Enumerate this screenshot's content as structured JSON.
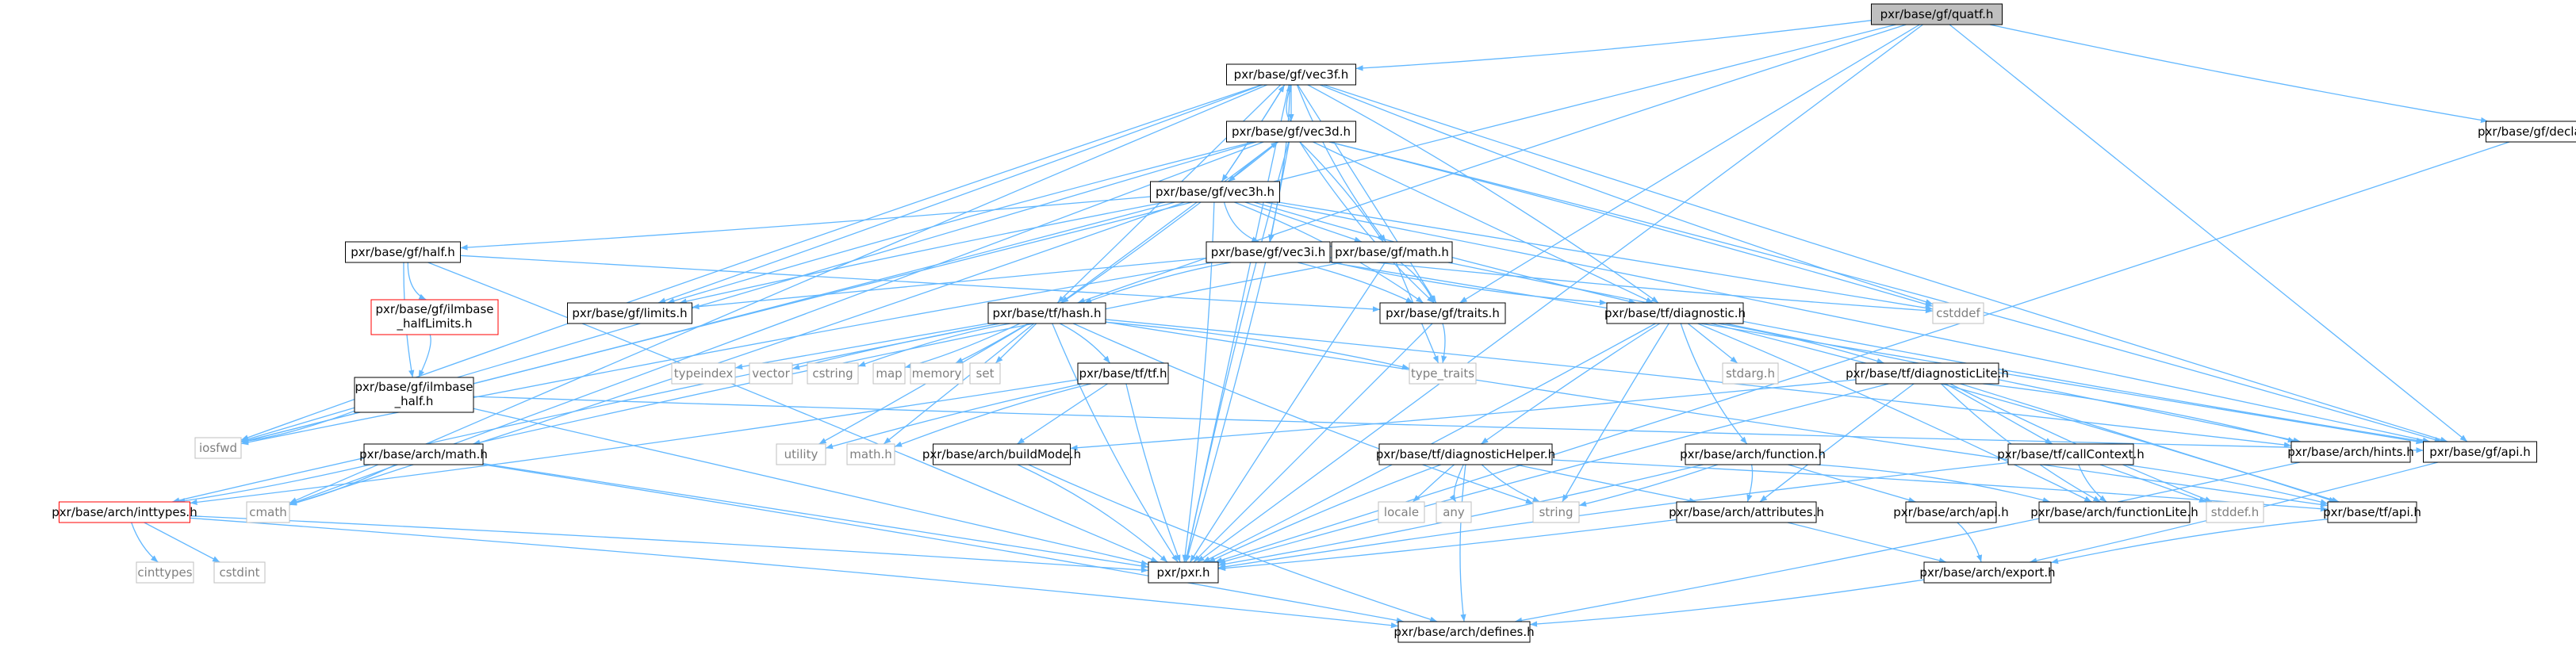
{
  "diagram": {
    "nodes": [
      {
        "id": "quatf",
        "label": "pxr/base/gf/quatf.h",
        "style": "root"
      },
      {
        "id": "vec3f",
        "label": "pxr/base/gf/vec3f.h",
        "style": "normal"
      },
      {
        "id": "vec3d",
        "label": "pxr/base/gf/vec3d.h",
        "style": "normal"
      },
      {
        "id": "vec3h",
        "label": "pxr/base/gf/vec3h.h",
        "style": "normal"
      },
      {
        "id": "half",
        "label": "pxr/base/gf/half.h",
        "style": "normal"
      },
      {
        "id": "ilmlimits",
        "label": [
          "pxr/base/gf/ilmbase",
          "_halfLimits.h"
        ],
        "style": "missing"
      },
      {
        "id": "ilmhalf",
        "label": [
          "pxr/base/gf/ilmbase",
          "_half.h"
        ],
        "style": "normal"
      },
      {
        "id": "limits",
        "label": "pxr/base/gf/limits.h",
        "style": "normal"
      },
      {
        "id": "vec3i",
        "label": "pxr/base/gf/vec3i.h",
        "style": "normal"
      },
      {
        "id": "gfmath",
        "label": "pxr/base/gf/math.h",
        "style": "normal"
      },
      {
        "id": "traits",
        "label": "pxr/base/gf/traits.h",
        "style": "normal"
      },
      {
        "id": "cstddef",
        "label": "cstddef",
        "style": "system"
      },
      {
        "id": "declare",
        "label": "pxr/base/gf/declare.h",
        "style": "normal"
      },
      {
        "id": "gfapi",
        "label": "pxr/base/gf/api.h",
        "style": "normal"
      },
      {
        "id": "hash",
        "label": "pxr/base/tf/hash.h",
        "style": "normal"
      },
      {
        "id": "diagnostic",
        "label": "pxr/base/tf/diagnostic.h",
        "style": "normal"
      },
      {
        "id": "typeindex",
        "label": "typeindex",
        "style": "system"
      },
      {
        "id": "vector",
        "label": "vector",
        "style": "system"
      },
      {
        "id": "cstring",
        "label": "cstring",
        "style": "system"
      },
      {
        "id": "map",
        "label": "map",
        "style": "system"
      },
      {
        "id": "memory",
        "label": "memory",
        "style": "system"
      },
      {
        "id": "set",
        "label": "set",
        "style": "system"
      },
      {
        "id": "tftf",
        "label": "pxr/base/tf/tf.h",
        "style": "normal"
      },
      {
        "id": "type_traits",
        "label": "type_traits",
        "style": "system"
      },
      {
        "id": "stdarg",
        "label": "stdarg.h",
        "style": "system"
      },
      {
        "id": "diaglite",
        "label": "pxr/base/tf/diagnosticLite.h",
        "style": "normal"
      },
      {
        "id": "iosfwd",
        "label": "iosfwd",
        "style": "system"
      },
      {
        "id": "utility",
        "label": "utility",
        "style": "system"
      },
      {
        "id": "mathh",
        "label": "math.h",
        "style": "system"
      },
      {
        "id": "archmath",
        "label": "pxr/base/arch/math.h",
        "style": "normal"
      },
      {
        "id": "buildmode",
        "label": "pxr/base/arch/buildMode.h",
        "style": "normal"
      },
      {
        "id": "diaghelper",
        "label": "pxr/base/tf/diagnosticHelper.h",
        "style": "normal"
      },
      {
        "id": "archfunc",
        "label": "pxr/base/arch/function.h",
        "style": "normal"
      },
      {
        "id": "callctx",
        "label": "pxr/base/tf/callContext.h",
        "style": "normal"
      },
      {
        "id": "hints",
        "label": "pxr/base/arch/hints.h",
        "style": "normal"
      },
      {
        "id": "inttypes",
        "label": "pxr/base/arch/inttypes.h",
        "style": "missing"
      },
      {
        "id": "cmath",
        "label": "cmath",
        "style": "system"
      },
      {
        "id": "locale",
        "label": "locale",
        "style": "system"
      },
      {
        "id": "any",
        "label": "any",
        "style": "system"
      },
      {
        "id": "string",
        "label": "string",
        "style": "system"
      },
      {
        "id": "attributes",
        "label": "pxr/base/arch/attributes.h",
        "style": "normal"
      },
      {
        "id": "archapi",
        "label": "pxr/base/arch/api.h",
        "style": "normal"
      },
      {
        "id": "funclite",
        "label": "pxr/base/arch/functionLite.h",
        "style": "normal"
      },
      {
        "id": "stddef",
        "label": "stddef.h",
        "style": "system"
      },
      {
        "id": "tfapi",
        "label": "pxr/base/tf/api.h",
        "style": "normal"
      },
      {
        "id": "cinttypes",
        "label": "cinttypes",
        "style": "system"
      },
      {
        "id": "cstdint",
        "label": "cstdint",
        "style": "system"
      },
      {
        "id": "pxr",
        "label": "pxr/pxr.h",
        "style": "normal"
      },
      {
        "id": "export",
        "label": "pxr/base/arch/export.h",
        "style": "normal"
      },
      {
        "id": "defines",
        "label": "pxr/base/arch/defines.h",
        "style": "normal"
      }
    ],
    "edges": [
      [
        "quatf",
        "vec3f"
      ],
      [
        "quatf",
        "declare"
      ],
      [
        "quatf",
        "gfapi"
      ],
      [
        "quatf",
        "traits"
      ],
      [
        "quatf",
        "hash"
      ],
      [
        "quatf",
        "pxr"
      ],
      [
        "quatf",
        "iosfwd"
      ],
      [
        "vec3f",
        "vec3d"
      ],
      [
        "vec3f",
        "vec3h"
      ],
      [
        "vec3f",
        "vec3i"
      ],
      [
        "vec3f",
        "gfmath"
      ],
      [
        "vec3f",
        "limits"
      ],
      [
        "vec3f",
        "traits"
      ],
      [
        "vec3f",
        "hash"
      ],
      [
        "vec3f",
        "diagnostic"
      ],
      [
        "vec3f",
        "cstddef"
      ],
      [
        "vec3f",
        "gfapi"
      ],
      [
        "vec3f",
        "pxr"
      ],
      [
        "vec3f",
        "cmath"
      ],
      [
        "vec3f",
        "iosfwd"
      ],
      [
        "vec3d",
        "vec3f"
      ],
      [
        "vec3d",
        "vec3h"
      ],
      [
        "vec3d",
        "vec3i"
      ],
      [
        "vec3d",
        "gfmath"
      ],
      [
        "vec3d",
        "limits"
      ],
      [
        "vec3d",
        "traits"
      ],
      [
        "vec3d",
        "hash"
      ],
      [
        "vec3d",
        "diagnostic"
      ],
      [
        "vec3d",
        "cstddef"
      ],
      [
        "vec3d",
        "gfapi"
      ],
      [
        "vec3d",
        "pxr"
      ],
      [
        "vec3d",
        "cmath"
      ],
      [
        "vec3d",
        "iosfwd"
      ],
      [
        "vec3h",
        "vec3f"
      ],
      [
        "vec3h",
        "vec3d"
      ],
      [
        "vec3h",
        "vec3i"
      ],
      [
        "vec3h",
        "half"
      ],
      [
        "vec3h",
        "gfmath"
      ],
      [
        "vec3h",
        "limits"
      ],
      [
        "vec3h",
        "traits"
      ],
      [
        "vec3h",
        "hash"
      ],
      [
        "vec3h",
        "diagnostic"
      ],
      [
        "vec3h",
        "cstddef"
      ],
      [
        "vec3h",
        "gfapi"
      ],
      [
        "vec3h",
        "pxr"
      ],
      [
        "vec3h",
        "cmath"
      ],
      [
        "vec3h",
        "iosfwd"
      ],
      [
        "vec3i",
        "limits"
      ],
      [
        "vec3i",
        "traits"
      ],
      [
        "vec3i",
        "hash"
      ],
      [
        "vec3i",
        "diagnostic"
      ],
      [
        "vec3i",
        "cstddef"
      ],
      [
        "vec3i",
        "gfapi"
      ],
      [
        "vec3i",
        "pxr"
      ],
      [
        "vec3i",
        "iosfwd"
      ],
      [
        "half",
        "ilmlimits"
      ],
      [
        "half",
        "ilmhalf"
      ],
      [
        "half",
        "traits"
      ],
      [
        "half",
        "pxr"
      ],
      [
        "ilmlimits",
        "ilmhalf"
      ],
      [
        "ilmhalf",
        "iosfwd"
      ],
      [
        "ilmhalf",
        "gfapi"
      ],
      [
        "ilmhalf",
        "pxr"
      ],
      [
        "gfmath",
        "traits"
      ],
      [
        "gfmath",
        "archmath"
      ],
      [
        "gfmath",
        "gfapi"
      ],
      [
        "gfmath",
        "pxr"
      ],
      [
        "gfmath",
        "type_traits"
      ],
      [
        "traits",
        "type_traits"
      ],
      [
        "traits",
        "pxr"
      ],
      [
        "declare",
        "pxr"
      ],
      [
        "gfapi",
        "export"
      ],
      [
        "hash",
        "typeindex"
      ],
      [
        "hash",
        "vector"
      ],
      [
        "hash",
        "cstring"
      ],
      [
        "hash",
        "map"
      ],
      [
        "hash",
        "memory"
      ],
      [
        "hash",
        "set"
      ],
      [
        "hash",
        "tftf"
      ],
      [
        "hash",
        "type_traits"
      ],
      [
        "hash",
        "string"
      ],
      [
        "hash",
        "utility"
      ],
      [
        "hash",
        "mathh"
      ],
      [
        "hash",
        "hints"
      ],
      [
        "hash",
        "inttypes"
      ],
      [
        "hash",
        "pxr"
      ],
      [
        "hash",
        "tfapi"
      ],
      [
        "tftf",
        "buildmode"
      ],
      [
        "tftf",
        "utility"
      ],
      [
        "tftf",
        "mathh"
      ],
      [
        "tftf",
        "inttypes"
      ],
      [
        "tftf",
        "pxr"
      ],
      [
        "diagnostic",
        "stdarg"
      ],
      [
        "diagnostic",
        "diaglite"
      ],
      [
        "diagnostic",
        "diaghelper"
      ],
      [
        "diagnostic",
        "archfunc"
      ],
      [
        "diagnostic",
        "string"
      ],
      [
        "diagnostic",
        "hints"
      ],
      [
        "diagnostic",
        "funclite"
      ],
      [
        "diagnostic",
        "tfapi"
      ],
      [
        "diagnostic",
        "pxr"
      ],
      [
        "diaglite",
        "buildmode"
      ],
      [
        "diaglite",
        "callctx"
      ],
      [
        "diaglite",
        "attributes"
      ],
      [
        "diaglite",
        "hints"
      ],
      [
        "diaglite",
        "funclite"
      ],
      [
        "diaglite",
        "stddef"
      ],
      [
        "diaglite",
        "tfapi"
      ],
      [
        "diaglite",
        "pxr"
      ],
      [
        "diaghelper",
        "locale"
      ],
      [
        "diaghelper",
        "any"
      ],
      [
        "diaghelper",
        "string"
      ],
      [
        "diaghelper",
        "attributes"
      ],
      [
        "diaghelper",
        "tfapi"
      ],
      [
        "diaghelper",
        "pxr"
      ],
      [
        "diaghelper",
        "defines"
      ],
      [
        "archfunc",
        "string"
      ],
      [
        "archfunc",
        "archapi"
      ],
      [
        "archfunc",
        "attributes"
      ],
      [
        "archfunc",
        "funclite"
      ],
      [
        "archfunc",
        "pxr"
      ],
      [
        "callctx",
        "funclite"
      ],
      [
        "callctx",
        "stddef"
      ],
      [
        "callctx",
        "tfapi"
      ],
      [
        "callctx",
        "pxr"
      ],
      [
        "archmath",
        "cmath"
      ],
      [
        "archmath",
        "inttypes"
      ],
      [
        "archmath",
        "pxr"
      ],
      [
        "archmath",
        "defines"
      ],
      [
        "buildmode",
        "pxr"
      ],
      [
        "buildmode",
        "defines"
      ],
      [
        "inttypes",
        "cinttypes"
      ],
      [
        "inttypes",
        "cstdint"
      ],
      [
        "inttypes",
        "pxr"
      ],
      [
        "inttypes",
        "defines"
      ],
      [
        "hints",
        "defines"
      ],
      [
        "attributes",
        "pxr"
      ],
      [
        "attributes",
        "export"
      ],
      [
        "archapi",
        "export"
      ],
      [
        "tfapi",
        "export"
      ],
      [
        "export",
        "defines"
      ]
    ]
  }
}
